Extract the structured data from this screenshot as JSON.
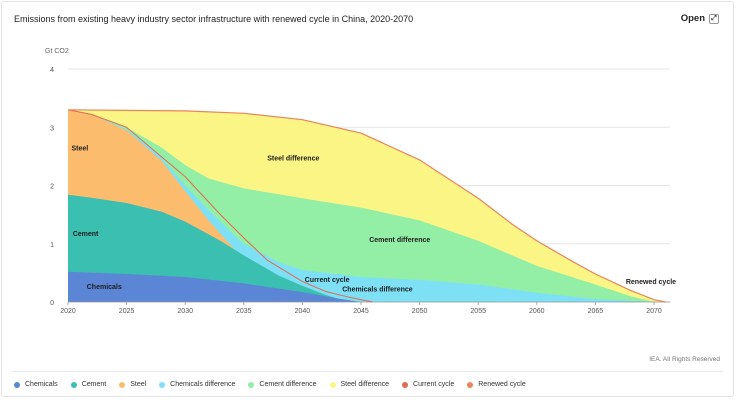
{
  "header": {
    "title": "Emissions from existing heavy industry sector infrastructure with renewed cycle in China, 2020-2070",
    "open_label": "Open",
    "open_icon": "expand-icon"
  },
  "footer": {
    "credit": "IEA. All Rights Reserved"
  },
  "chart_data": {
    "type": "area",
    "ylabel": "Gt CO2",
    "ylim": [
      0,
      4
    ],
    "xlim": [
      2020,
      2071
    ],
    "y_ticks": [
      "0",
      "1",
      "2",
      "3",
      "4"
    ],
    "x_ticks": [
      "2020",
      "2025",
      "2030",
      "2035",
      "2040",
      "2045",
      "2050",
      "2055",
      "2060",
      "2065",
      "2070"
    ],
    "grid": true,
    "legend_placement": "bottom",
    "series": [
      {
        "name": "Chemicals",
        "color": "#5b86d6",
        "points": [
          [
            2020,
            0.52
          ],
          [
            2025,
            0.48
          ],
          [
            2030,
            0.43
          ],
          [
            2035,
            0.32
          ],
          [
            2040,
            0.17
          ],
          [
            2043,
            0.06
          ],
          [
            2045,
            0.0
          ]
        ]
      },
      {
        "name": "Cement",
        "color": "#3bbfb0",
        "points": [
          [
            2020,
            1.84
          ],
          [
            2022,
            1.79
          ],
          [
            2025,
            1.7
          ],
          [
            2028,
            1.55
          ],
          [
            2030,
            1.38
          ],
          [
            2033,
            1.05
          ],
          [
            2035,
            0.8
          ],
          [
            2038,
            0.45
          ],
          [
            2040,
            0.28
          ],
          [
            2042,
            0.12
          ],
          [
            2043,
            0.06
          ],
          [
            2045,
            0.0
          ]
        ]
      },
      {
        "name": "Steel",
        "color": "#fbbc6e",
        "points": [
          [
            2020,
            3.3
          ],
          [
            2022,
            3.22
          ],
          [
            2025,
            2.95
          ],
          [
            2027,
            2.6
          ],
          [
            2028,
            2.42
          ],
          [
            2030,
            1.9
          ],
          [
            2032,
            1.4
          ],
          [
            2034,
            0.95
          ],
          [
            2035,
            0.7
          ],
          [
            2037,
            0.45
          ],
          [
            2040,
            0.22
          ],
          [
            2042,
            0.08
          ],
          [
            2044,
            0.0
          ]
        ]
      },
      {
        "name": "Chemicals difference",
        "color": "#7ee0f5",
        "points": [
          [
            2020,
            3.3
          ],
          [
            2022,
            3.22
          ],
          [
            2025,
            2.97
          ],
          [
            2027,
            2.65
          ],
          [
            2028,
            2.47
          ],
          [
            2030,
            2.0
          ],
          [
            2032,
            1.58
          ],
          [
            2034,
            1.18
          ],
          [
            2035,
            1.0
          ],
          [
            2038,
            0.68
          ],
          [
            2040,
            0.55
          ],
          [
            2045,
            0.43
          ],
          [
            2050,
            0.38
          ],
          [
            2055,
            0.3
          ],
          [
            2060,
            0.16
          ],
          [
            2065,
            0.05
          ],
          [
            2070,
            0.0
          ]
        ]
      },
      {
        "name": "Cement difference",
        "color": "#94efa6",
        "points": [
          [
            2020,
            3.3
          ],
          [
            2022,
            3.23
          ],
          [
            2025,
            3.0
          ],
          [
            2028,
            2.65
          ],
          [
            2030,
            2.35
          ],
          [
            2032,
            2.12
          ],
          [
            2035,
            1.95
          ],
          [
            2038,
            1.85
          ],
          [
            2040,
            1.78
          ],
          [
            2045,
            1.62
          ],
          [
            2050,
            1.4
          ],
          [
            2055,
            1.05
          ],
          [
            2060,
            0.62
          ],
          [
            2065,
            0.3
          ],
          [
            2068,
            0.1
          ],
          [
            2070,
            0.0
          ]
        ]
      },
      {
        "name": "Steel difference",
        "color": "#fbf586",
        "points": [
          [
            2020,
            3.3
          ],
          [
            2025,
            3.29
          ],
          [
            2030,
            3.28
          ],
          [
            2035,
            3.24
          ],
          [
            2040,
            3.13
          ],
          [
            2045,
            2.9
          ],
          [
            2050,
            2.44
          ],
          [
            2055,
            1.78
          ],
          [
            2058,
            1.32
          ],
          [
            2060,
            1.05
          ],
          [
            2063,
            0.7
          ],
          [
            2065,
            0.48
          ],
          [
            2068,
            0.2
          ],
          [
            2070,
            0.04
          ],
          [
            2071,
            0.0
          ]
        ]
      },
      {
        "name": "Current cycle",
        "color": "#e06a54",
        "points": [
          [
            2020,
            3.3
          ],
          [
            2022,
            3.22
          ],
          [
            2025,
            3.0
          ],
          [
            2027,
            2.66
          ],
          [
            2030,
            2.15
          ],
          [
            2033,
            1.5
          ],
          [
            2035,
            1.1
          ],
          [
            2037,
            0.72
          ],
          [
            2040,
            0.35
          ],
          [
            2042,
            0.18
          ],
          [
            2044,
            0.08
          ],
          [
            2046,
            0.0
          ]
        ]
      },
      {
        "name": "Renewed cycle",
        "color": "#e8855a",
        "points": [
          [
            2020,
            3.3
          ],
          [
            2025,
            3.29
          ],
          [
            2030,
            3.28
          ],
          [
            2035,
            3.24
          ],
          [
            2040,
            3.13
          ],
          [
            2045,
            2.9
          ],
          [
            2050,
            2.44
          ],
          [
            2055,
            1.78
          ],
          [
            2058,
            1.32
          ],
          [
            2060,
            1.05
          ],
          [
            2063,
            0.7
          ],
          [
            2065,
            0.48
          ],
          [
            2068,
            0.2
          ],
          [
            2070,
            0.04
          ],
          [
            2071,
            0.0
          ]
        ]
      }
    ],
    "annotations": [
      "Steel",
      "Cement",
      "Chemicals",
      "Steel difference",
      "Cement difference",
      "Current cycle",
      "Chemicals difference",
      "Renewed cycle"
    ]
  }
}
